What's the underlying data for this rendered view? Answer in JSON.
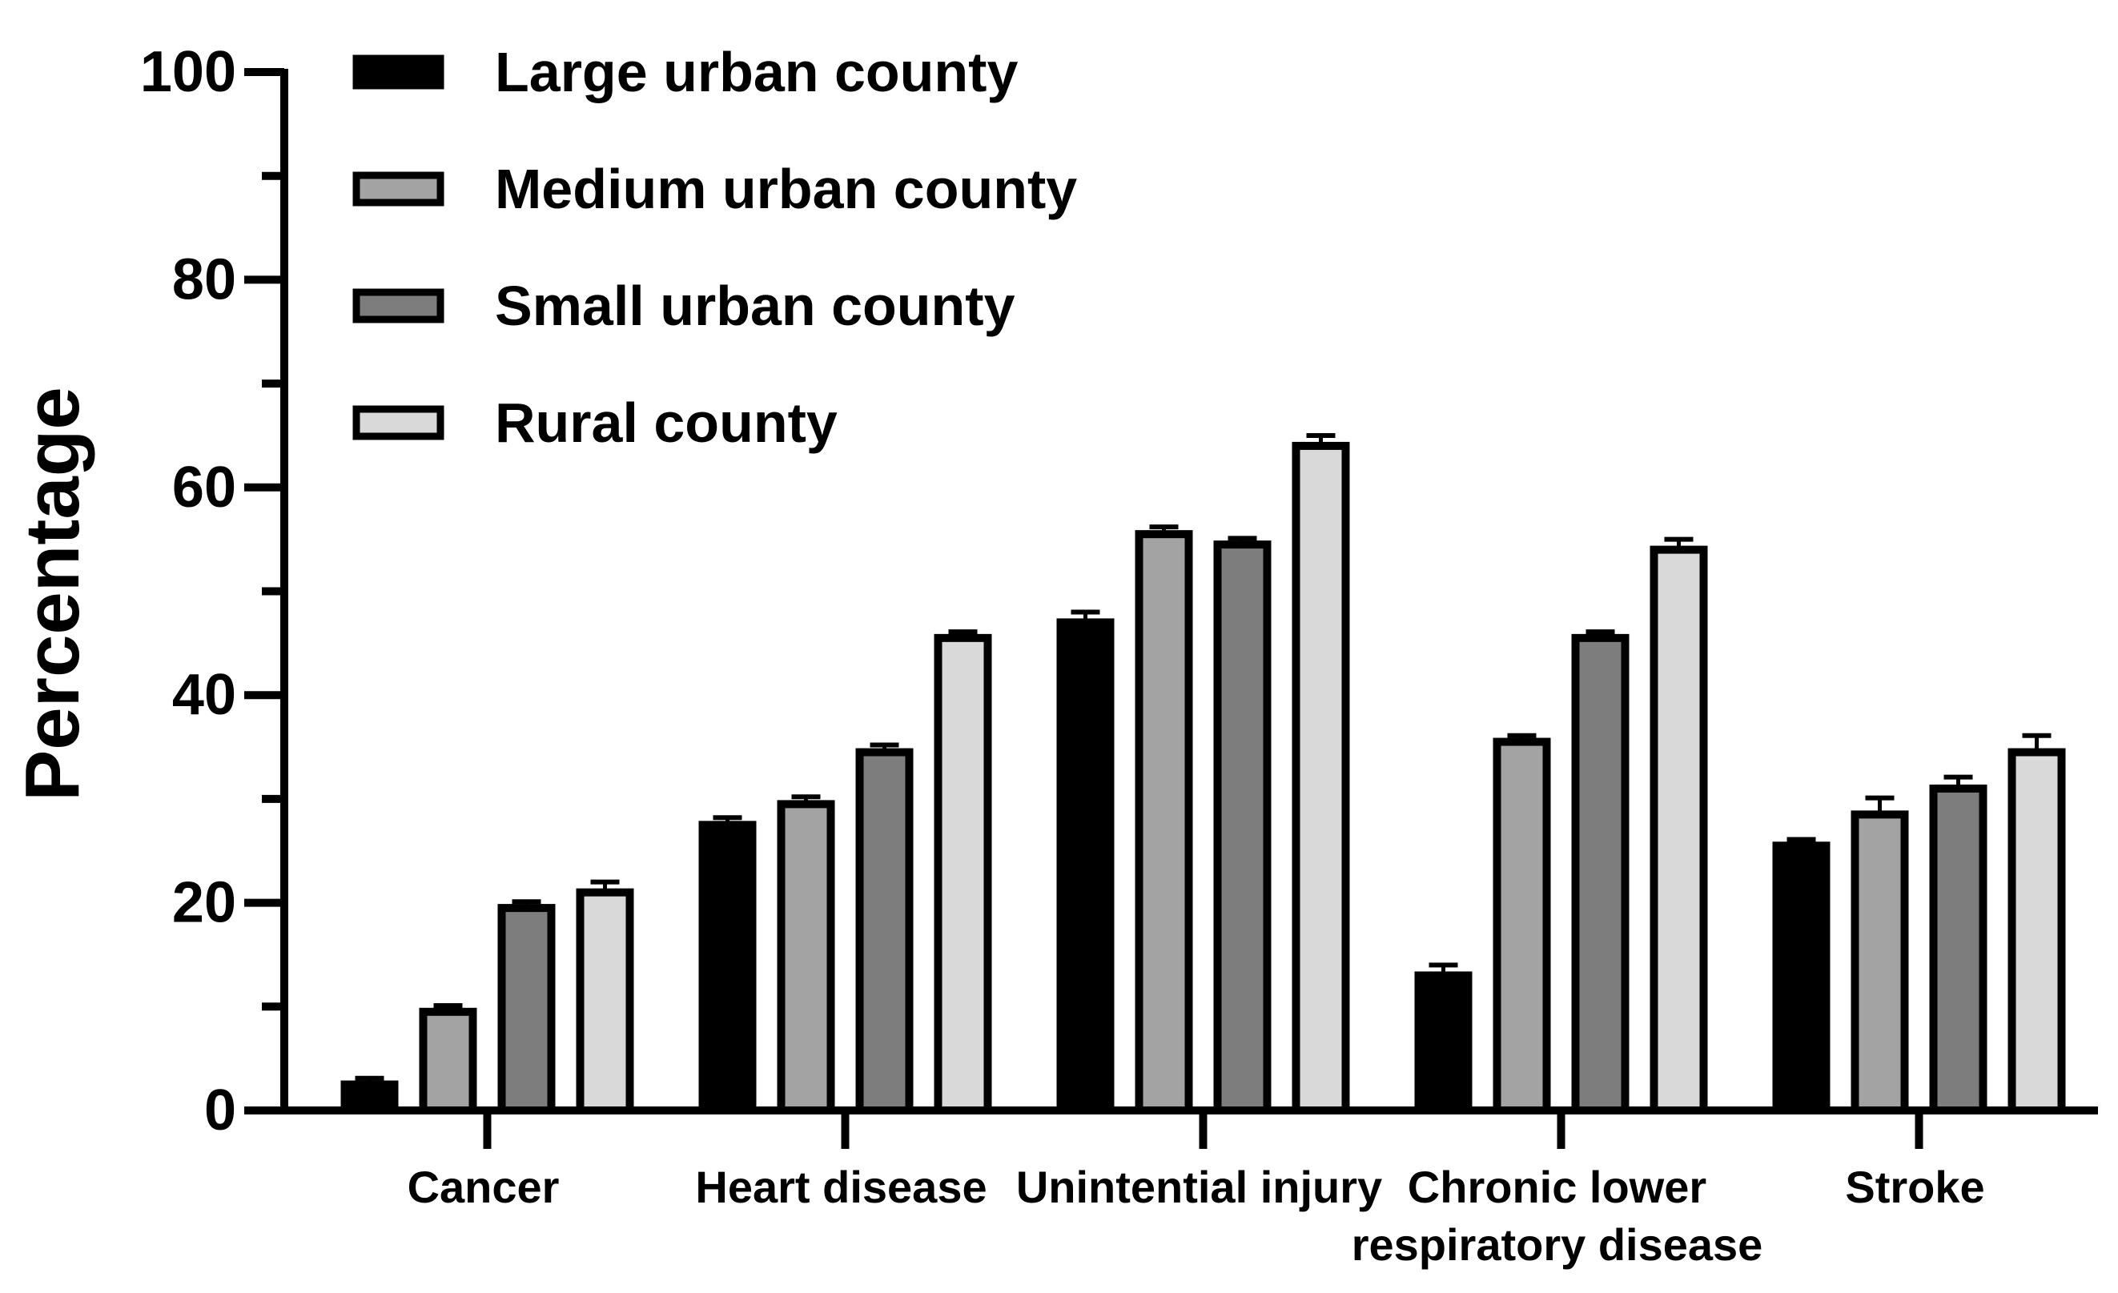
{
  "chart_data": {
    "type": "bar",
    "title": "",
    "xlabel": "",
    "ylabel": "Percentage",
    "ylim": [
      0,
      100
    ],
    "yticks": [
      "0",
      "20",
      "40",
      "60",
      "80",
      "100"
    ],
    "grid": false,
    "legend_position": "top-left",
    "categories": [
      {
        "lines": [
          "Cancer"
        ]
      },
      {
        "lines": [
          "Heart disease"
        ]
      },
      {
        "lines": [
          "Unintential injury"
        ]
      },
      {
        "lines": [
          "Chronic lower",
          "respiratory disease"
        ]
      },
      {
        "lines": [
          "Stroke"
        ]
      }
    ],
    "series": [
      {
        "name": "Large urban county",
        "color": "#000000",
        "values": [
          2.5,
          27.5,
          47.0,
          13.0,
          25.5
        ],
        "errors": [
          0.6,
          0.7,
          1.0,
          1.0,
          0.6
        ]
      },
      {
        "name": "Medium urban county",
        "color": "#a3a3a3",
        "values": [
          9.5,
          29.5,
          55.5,
          35.5,
          28.5
        ],
        "errors": [
          0.6,
          0.7,
          0.7,
          0.6,
          1.6
        ]
      },
      {
        "name": "Small urban county",
        "color": "#7d7d7d",
        "values": [
          19.5,
          34.5,
          54.5,
          45.5,
          31.0
        ],
        "errors": [
          0.6,
          0.7,
          0.6,
          0.6,
          1.1
        ]
      },
      {
        "name": "Rural county",
        "color": "#d9d9d9",
        "values": [
          21.0,
          45.5,
          64.0,
          54.0,
          34.5
        ],
        "errors": [
          1.0,
          0.6,
          1.0,
          1.0,
          1.6
        ]
      }
    ]
  }
}
